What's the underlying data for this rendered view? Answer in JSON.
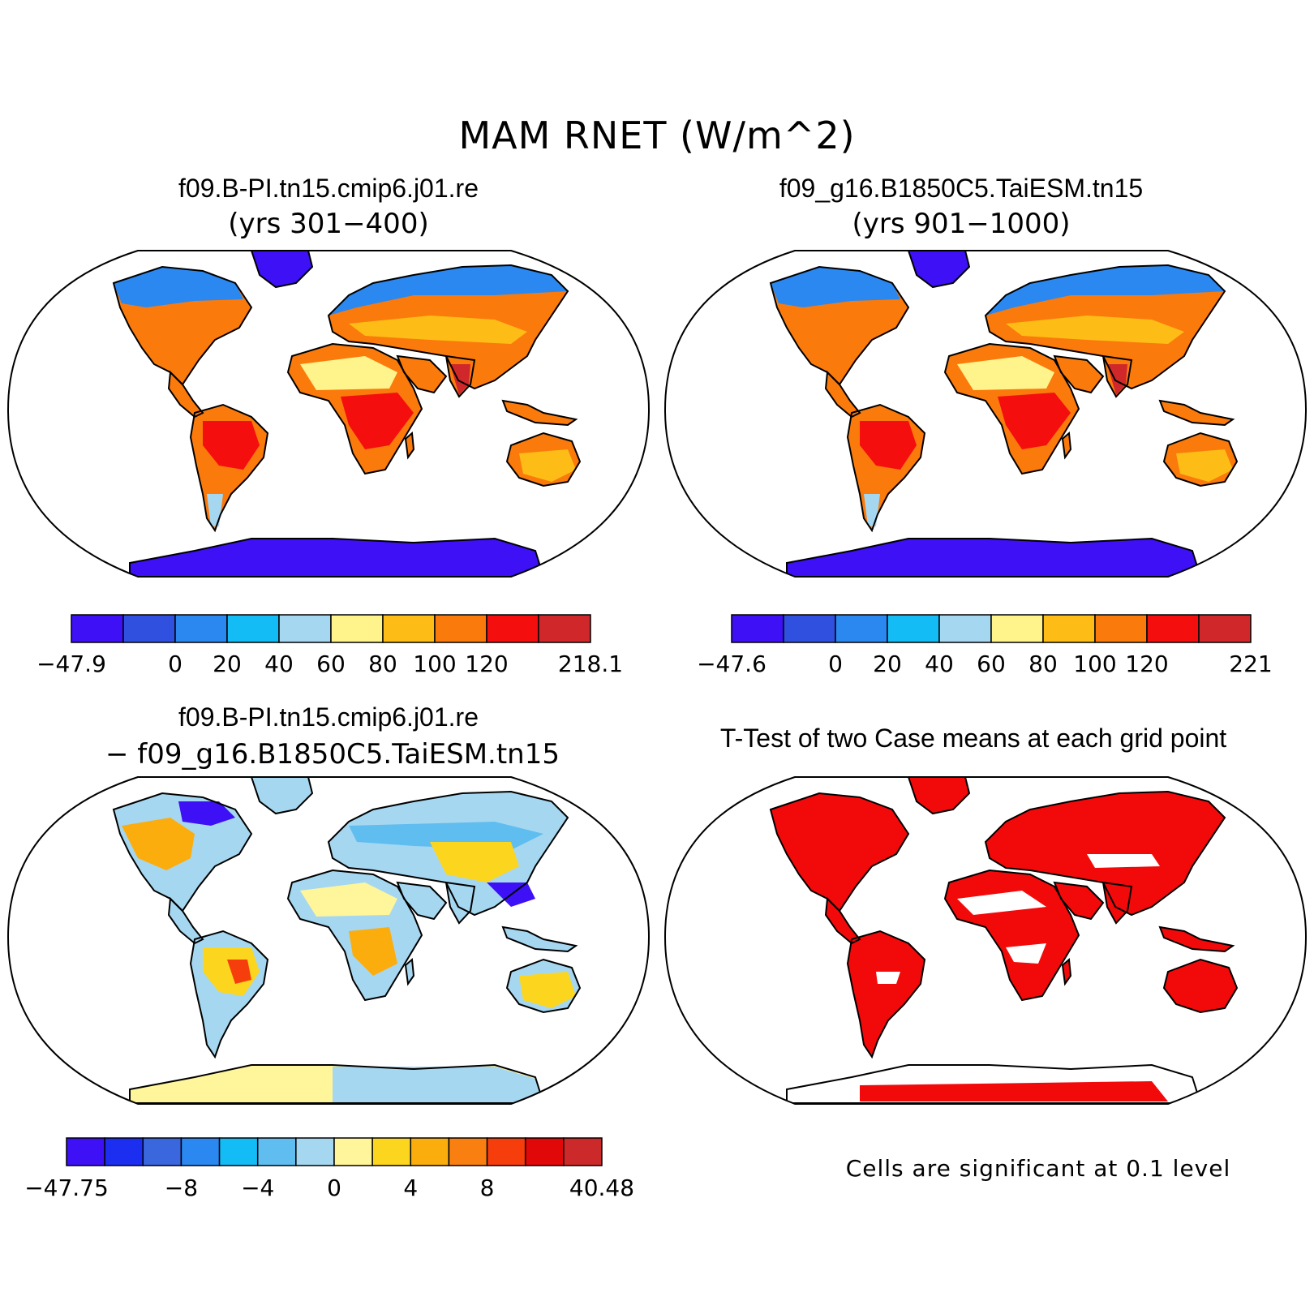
{
  "figure": {
    "title": "MAM RNET (W/m^2)"
  },
  "panels": [
    {
      "title": "f09.B-PI.tn15.cmip6.j01.re",
      "subtitle": "(yrs 301−400)",
      "colorbar": {
        "colors": [
          "#3d10f5",
          "#3050e0",
          "#2a88f0",
          "#14bcf5",
          "#a6d7f0",
          "#fff48c",
          "#fdbd16",
          "#fa7b0c",
          "#f40e0e",
          "#d0282a"
        ],
        "tick_labels": [
          "−47.9",
          "0",
          "20",
          "40",
          "60",
          "80",
          "100",
          "120",
          "218.1"
        ],
        "tick_boundaries": [
          0,
          2,
          3,
          4,
          5,
          6,
          7,
          8,
          10
        ]
      }
    },
    {
      "title": "f09_g16.B1850C5.TaiESM.tn15",
      "subtitle": "(yrs 901−1000)",
      "colorbar": {
        "colors": [
          "#3d10f5",
          "#3050e0",
          "#2a88f0",
          "#14bcf5",
          "#a6d7f0",
          "#fff48c",
          "#fdbd16",
          "#fa7b0c",
          "#f40e0e",
          "#d0282a"
        ],
        "tick_labels": [
          "−47.6",
          "0",
          "20",
          "40",
          "60",
          "80",
          "100",
          "120",
          "221"
        ],
        "tick_boundaries": [
          0,
          2,
          3,
          4,
          5,
          6,
          7,
          8,
          10
        ]
      }
    },
    {
      "title": "f09.B-PI.tn15.cmip6.j01.re",
      "subtitle": "− f09_g16.B1850C5.TaiESM.tn15",
      "colorbar": {
        "colors": [
          "#3d10f5",
          "#1c2ef0",
          "#3a66de",
          "#2a88f0",
          "#14bcf5",
          "#60bdf0",
          "#a6d7f0",
          "#fff59a",
          "#fcd61e",
          "#fbad0e",
          "#f98010",
          "#f63e0c",
          "#e00808",
          "#cc2a2a"
        ],
        "tick_labels": [
          "−47.75",
          "−8",
          "−4",
          "0",
          "4",
          "8",
          "40.48"
        ],
        "tick_boundaries": [
          0,
          3,
          5,
          7,
          9,
          11,
          14
        ]
      }
    },
    {
      "title": "T-Test of two Case means at each grid point",
      "note": "Cells are significant at 0.1 level"
    }
  ]
}
